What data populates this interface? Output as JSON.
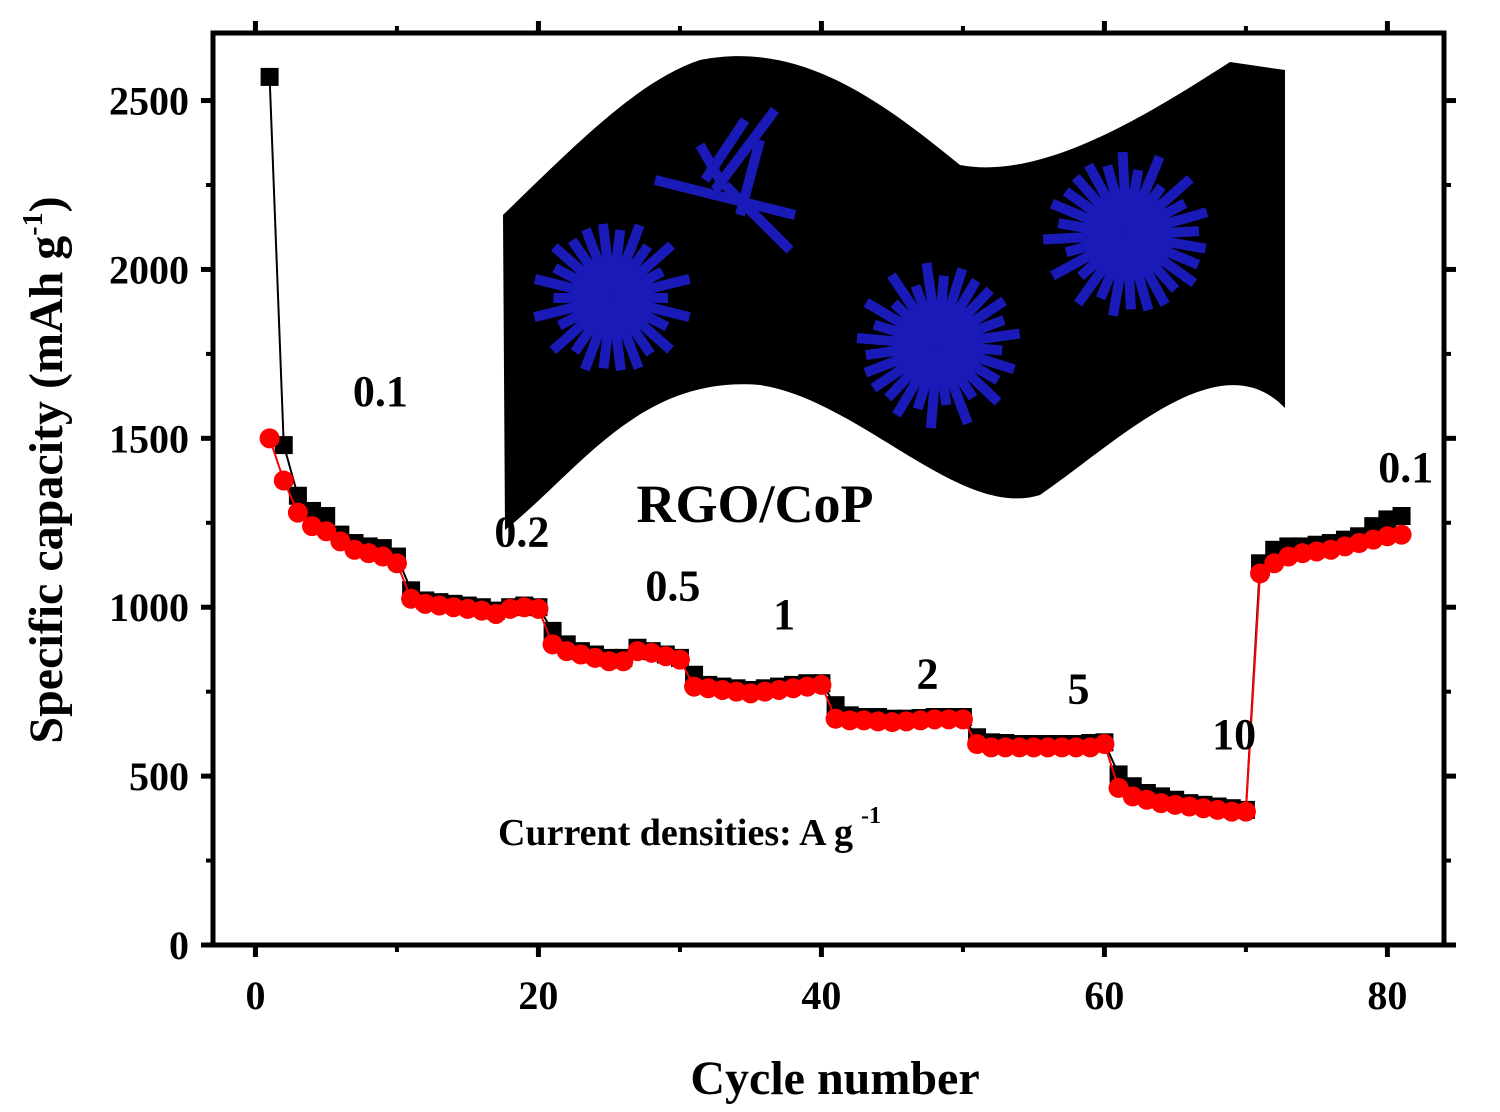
{
  "chart_data": {
    "type": "scatter",
    "xlabel": "Cycle number",
    "ylabel": "Specific capacity (mAh g",
    "ylabel_sup": "-1",
    "ylabel_close": ")",
    "xlim": [
      -3,
      84
    ],
    "ylim": [
      0,
      2700
    ],
    "xticks": [
      0,
      20,
      40,
      60,
      80
    ],
    "yticks": [
      0,
      500,
      1000,
      1500,
      2000,
      2500
    ],
    "grid": false,
    "colors": {
      "charge": "#000000",
      "discharge": "#ff0000"
    },
    "x": [
      1,
      2,
      3,
      4,
      5,
      6,
      7,
      8,
      9,
      10,
      11,
      12,
      13,
      14,
      15,
      16,
      17,
      18,
      19,
      20,
      21,
      22,
      23,
      24,
      25,
      26,
      27,
      28,
      29,
      30,
      31,
      32,
      33,
      34,
      35,
      36,
      37,
      38,
      39,
      40,
      41,
      42,
      43,
      44,
      45,
      46,
      47,
      48,
      49,
      50,
      51,
      52,
      53,
      54,
      55,
      56,
      57,
      58,
      59,
      60,
      61,
      62,
      63,
      64,
      65,
      66,
      67,
      68,
      69,
      70,
      71,
      72,
      73,
      74,
      75,
      76,
      77,
      78,
      79,
      80,
      81
    ],
    "series": [
      {
        "marker": "square",
        "values": [
          2570,
          1480,
          1330,
          1285,
          1270,
          1215,
          1190,
          1180,
          1175,
          1150,
          1050,
          1020,
          1015,
          1010,
          1005,
          1000,
          990,
          1000,
          1005,
          1000,
          930,
          890,
          870,
          860,
          850,
          850,
          880,
          870,
          860,
          850,
          800,
          770,
          765,
          760,
          755,
          760,
          765,
          770,
          775,
          775,
          710,
          680,
          675,
          675,
          670,
          670,
          672,
          675,
          675,
          675,
          615,
          600,
          598,
          595,
          595,
          595,
          595,
          595,
          598,
          600,
          505,
          470,
          450,
          440,
          430,
          420,
          415,
          410,
          405,
          400,
          1130,
          1170,
          1180,
          1180,
          1185,
          1190,
          1200,
          1210,
          1240,
          1260,
          1270
        ]
      },
      {
        "marker": "circle",
        "values": [
          1500,
          1375,
          1280,
          1240,
          1225,
          1195,
          1170,
          1160,
          1150,
          1130,
          1025,
          1010,
          1005,
          1000,
          995,
          990,
          980,
          995,
          1000,
          995,
          890,
          870,
          860,
          850,
          840,
          840,
          870,
          865,
          855,
          845,
          765,
          760,
          755,
          750,
          745,
          750,
          755,
          760,
          765,
          770,
          670,
          665,
          665,
          662,
          660,
          662,
          665,
          668,
          668,
          668,
          595,
          585,
          585,
          585,
          585,
          585,
          585,
          585,
          585,
          595,
          465,
          440,
          430,
          420,
          415,
          410,
          405,
          400,
          395,
          395,
          1100,
          1130,
          1150,
          1160,
          1165,
          1170,
          1180,
          1190,
          1200,
          1210,
          1215
        ]
      }
    ],
    "annotations": [
      {
        "text": "0.1",
        "x": 9.5,
        "y": 1595
      },
      {
        "text": "0.2",
        "x": 24.5,
        "y": 1180
      },
      {
        "text": "0.5",
        "x": 40.5,
        "y": 1020
      },
      {
        "text": "1",
        "x": 52.3,
        "y": 935
      },
      {
        "text": "2",
        "x": 67.5,
        "y": 760
      },
      {
        "text": "5",
        "x": 83.5,
        "y": 715
      },
      {
        "text": "10",
        "x": 100,
        "y": 580
      },
      {
        "text": "0.1",
        "x": 118.2,
        "y": 1370
      }
    ]
  },
  "inset": {
    "title": "RGO/CoP",
    "note": "Current densities: A g",
    "note_sup": "-1",
    "sheet_color": "#000000",
    "rod_color": "#1a1ab8"
  }
}
